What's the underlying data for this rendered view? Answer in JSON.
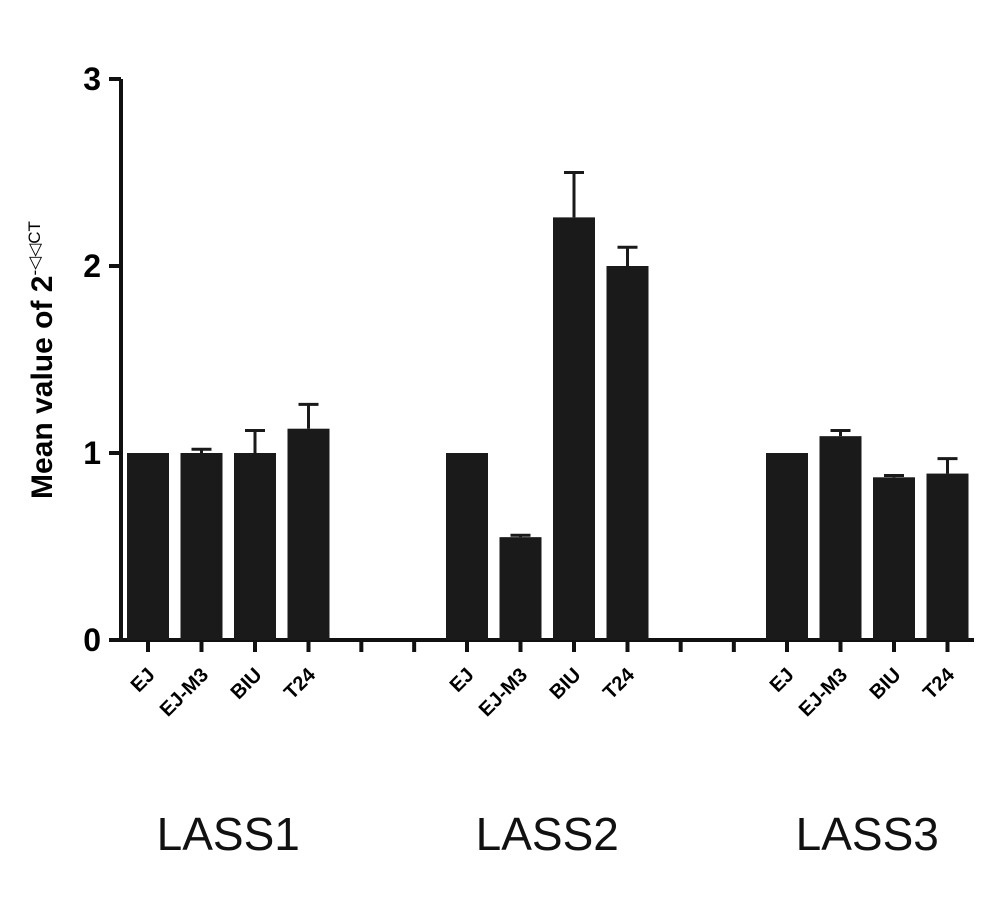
{
  "chart_data": {
    "type": "bar",
    "ylabel": "Mean value of 2",
    "ylabel_superscript": "-◁◁CT",
    "ylim": [
      0,
      3
    ],
    "yticks": [
      "0",
      "1",
      "2",
      "3"
    ],
    "groups": [
      {
        "name": "LASS1",
        "categories": [
          "EJ",
          "EJ-M3",
          "BIU",
          "T24"
        ],
        "values": [
          1.0,
          1.0,
          1.0,
          1.13
        ],
        "errors": [
          0.0,
          0.02,
          0.12,
          0.13
        ]
      },
      {
        "name": "LASS2",
        "categories": [
          "EJ",
          "EJ-M3",
          "BIU",
          "T24"
        ],
        "values": [
          1.0,
          0.55,
          2.26,
          2.0
        ],
        "errors": [
          0.0,
          0.01,
          0.24,
          0.1
        ]
      },
      {
        "name": "LASS3",
        "categories": [
          "EJ",
          "EJ-M3",
          "BIU",
          "T24"
        ],
        "values": [
          1.0,
          1.09,
          0.87,
          0.89
        ],
        "errors": [
          0.0,
          0.03,
          0.01,
          0.08
        ]
      }
    ],
    "bar_color": "#1a1a1a",
    "grid": false,
    "legend": "none"
  }
}
